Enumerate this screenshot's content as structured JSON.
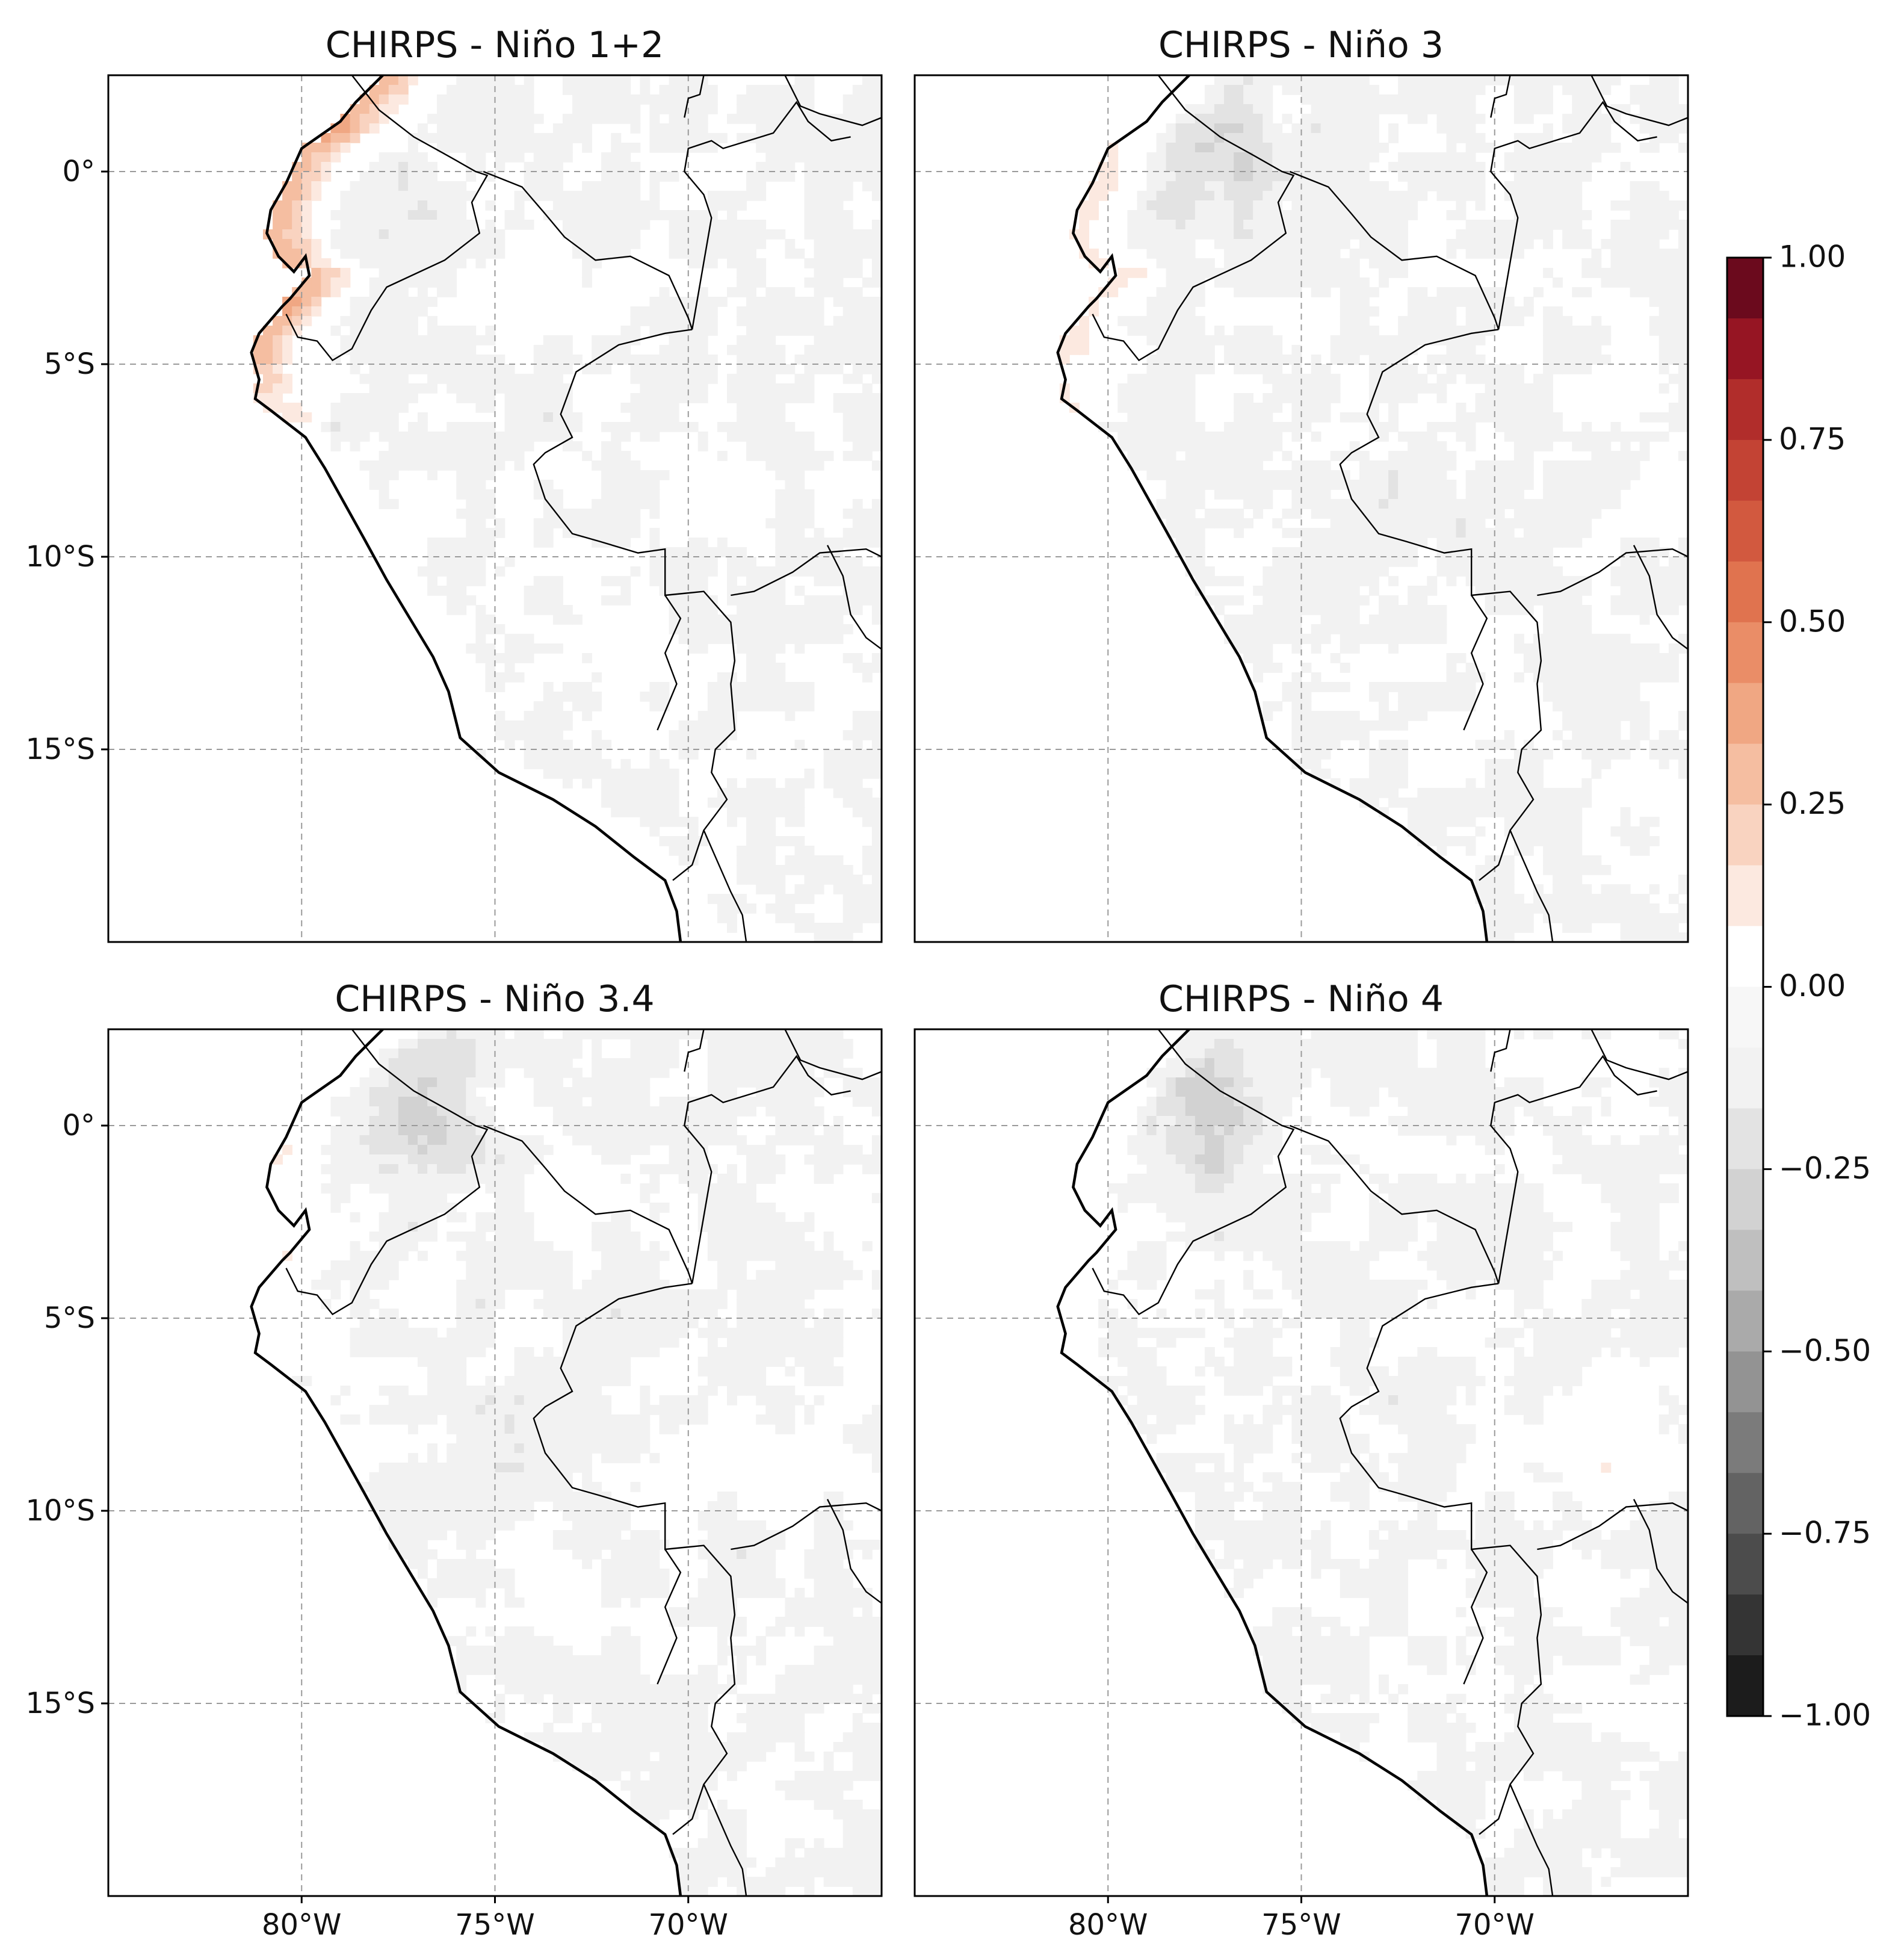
{
  "figure": {
    "panels": [
      {
        "title": "CHIRPS - Niño 1+2",
        "variant": "n12"
      },
      {
        "title": "CHIRPS - Niño 3",
        "variant": "n3"
      },
      {
        "title": "CHIRPS - Niño 3.4",
        "variant": "n34"
      },
      {
        "title": "CHIRPS - Niño 4",
        "variant": "n4"
      }
    ],
    "lat_ticks": [
      "0°",
      "5°S",
      "10°S",
      "15°S"
    ],
    "lon_ticks": [
      "80°W",
      "75°W",
      "70°W"
    ],
    "colorbar": {
      "min": -1.0,
      "max": 1.0,
      "levels": 24,
      "ticks": [
        "1.00",
        "0.75",
        "0.50",
        "0.25",
        "0.00",
        "−0.25",
        "−0.50",
        "−0.75",
        "−1.00"
      ],
      "colors": {
        "positive": [
          "#ffffff",
          "#fce9e0",
          "#f9d3c0",
          "#f5bea1",
          "#f0a783",
          "#ea8d67",
          "#e0734f",
          "#d2593f",
          "#c34334",
          "#b12d2b",
          "#961523",
          "#6b0a1d"
        ],
        "negative": [
          "#ffffff",
          "#f2f2f2",
          "#e3e3e3",
          "#d2d2d2",
          "#bfbfbf",
          "#aaaaaa",
          "#939393",
          "#7b7b7b",
          "#636363",
          "#4c4c4c",
          "#343434",
          "#1c1c1c"
        ]
      }
    }
  }
}
